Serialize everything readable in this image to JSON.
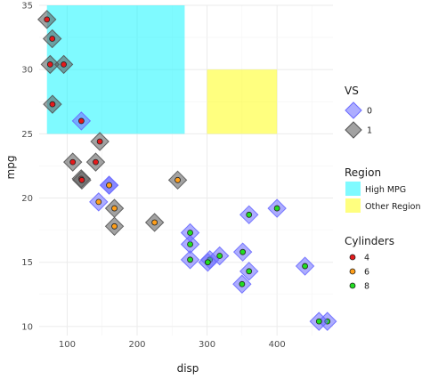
{
  "chart_data": {
    "type": "scatter",
    "xlabel": "disp",
    "ylabel": "mpg",
    "xlim": [
      60,
      480
    ],
    "ylim": [
      9.3,
      35
    ],
    "x_ticks": [
      100,
      200,
      300,
      400
    ],
    "y_ticks": [
      10,
      15,
      20,
      25,
      30,
      35
    ],
    "grid": true,
    "legend_position": "right",
    "regions": [
      {
        "name": "High MPG",
        "x": [
          71.1,
          268
        ],
        "y": [
          25,
          35
        ],
        "color": "#00f5ff",
        "alpha": 0.5
      },
      {
        "name": "Other Region",
        "x": [
          300,
          400
        ],
        "y": [
          25,
          30
        ],
        "color": "#ffff00",
        "alpha": 0.5
      }
    ],
    "vs_colors": {
      "0": "#6a6aff",
      "1": "#555555"
    },
    "cyl_colors": {
      "4": "#e41a1c",
      "6": "#ff9f1a",
      "8": "#22dd22"
    },
    "points": [
      {
        "disp": 160,
        "mpg": 21.0,
        "cyl": 6,
        "vs": 0
      },
      {
        "disp": 160,
        "mpg": 21.0,
        "cyl": 6,
        "vs": 0
      },
      {
        "disp": 108,
        "mpg": 22.8,
        "cyl": 4,
        "vs": 1
      },
      {
        "disp": 258,
        "mpg": 21.4,
        "cyl": 6,
        "vs": 1
      },
      {
        "disp": 360,
        "mpg": 18.7,
        "cyl": 8,
        "vs": 0
      },
      {
        "disp": 225,
        "mpg": 18.1,
        "cyl": 6,
        "vs": 1
      },
      {
        "disp": 360,
        "mpg": 14.3,
        "cyl": 8,
        "vs": 0
      },
      {
        "disp": 146.7,
        "mpg": 24.4,
        "cyl": 4,
        "vs": 1
      },
      {
        "disp": 140.8,
        "mpg": 22.8,
        "cyl": 4,
        "vs": 1
      },
      {
        "disp": 167.6,
        "mpg": 19.2,
        "cyl": 6,
        "vs": 1
      },
      {
        "disp": 167.6,
        "mpg": 17.8,
        "cyl": 6,
        "vs": 1
      },
      {
        "disp": 275.8,
        "mpg": 16.4,
        "cyl": 8,
        "vs": 0
      },
      {
        "disp": 275.8,
        "mpg": 17.3,
        "cyl": 8,
        "vs": 0
      },
      {
        "disp": 275.8,
        "mpg": 15.2,
        "cyl": 8,
        "vs": 0
      },
      {
        "disp": 472,
        "mpg": 10.4,
        "cyl": 8,
        "vs": 0
      },
      {
        "disp": 460,
        "mpg": 10.4,
        "cyl": 8,
        "vs": 0
      },
      {
        "disp": 440,
        "mpg": 14.7,
        "cyl": 8,
        "vs": 0
      },
      {
        "disp": 78.7,
        "mpg": 32.4,
        "cyl": 4,
        "vs": 1
      },
      {
        "disp": 75.7,
        "mpg": 30.4,
        "cyl": 4,
        "vs": 1
      },
      {
        "disp": 71.1,
        "mpg": 33.9,
        "cyl": 4,
        "vs": 1
      },
      {
        "disp": 120.1,
        "mpg": 21.5,
        "cyl": 4,
        "vs": 1
      },
      {
        "disp": 318,
        "mpg": 15.5,
        "cyl": 8,
        "vs": 0
      },
      {
        "disp": 304,
        "mpg": 15.2,
        "cyl": 8,
        "vs": 0
      },
      {
        "disp": 350,
        "mpg": 13.3,
        "cyl": 8,
        "vs": 0
      },
      {
        "disp": 400,
        "mpg": 19.2,
        "cyl": 8,
        "vs": 0
      },
      {
        "disp": 79,
        "mpg": 27.3,
        "cyl": 4,
        "vs": 1
      },
      {
        "disp": 120.3,
        "mpg": 26.0,
        "cyl": 4,
        "vs": 0
      },
      {
        "disp": 95.1,
        "mpg": 30.4,
        "cyl": 4,
        "vs": 1
      },
      {
        "disp": 351,
        "mpg": 15.8,
        "cyl": 8,
        "vs": 0
      },
      {
        "disp": 145,
        "mpg": 19.7,
        "cyl": 6,
        "vs": 0
      },
      {
        "disp": 301,
        "mpg": 15.0,
        "cyl": 8,
        "vs": 0
      },
      {
        "disp": 121,
        "mpg": 21.4,
        "cyl": 4,
        "vs": 1
      }
    ],
    "legends": {
      "vs": {
        "title": "VS",
        "items": [
          {
            "label": "0",
            "key": "0"
          },
          {
            "label": "1",
            "key": "1"
          }
        ]
      },
      "region": {
        "title": "Region",
        "items": [
          {
            "label": "High MPG"
          },
          {
            "label": "Other Region"
          }
        ]
      },
      "cylinders": {
        "title": "Cylinders",
        "items": [
          {
            "label": "4",
            "key": "4"
          },
          {
            "label": "6",
            "key": "6"
          },
          {
            "label": "8",
            "key": "8"
          }
        ]
      }
    }
  }
}
